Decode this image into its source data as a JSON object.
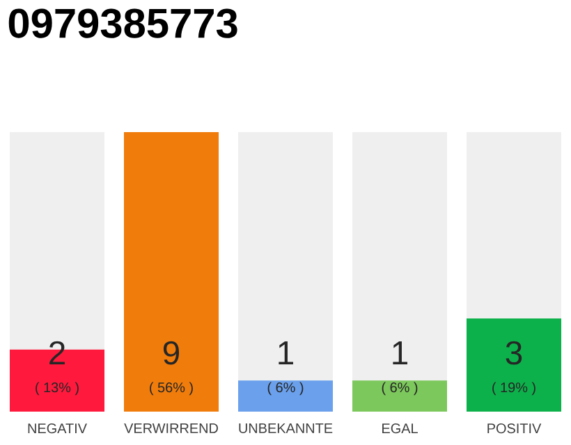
{
  "chart_data": {
    "type": "bar",
    "title": "0979385773",
    "categories": [
      "NEGATIV",
      "VERWIRREND",
      "UNBEKANNTE",
      "EGAL",
      "POSITIV"
    ],
    "values": [
      2,
      9,
      1,
      1,
      3
    ],
    "colors": [
      "#ff1a3d",
      "#f07c0b",
      "#6aa0ec",
      "#7cc85c",
      "#0db14b"
    ],
    "value_labels": [
      "2",
      "9",
      "1",
      "1",
      "3"
    ],
    "annotations": [
      "( 13% )",
      "( 56% )",
      "( 6% )",
      "( 6% )",
      "( 19% )"
    ]
  }
}
